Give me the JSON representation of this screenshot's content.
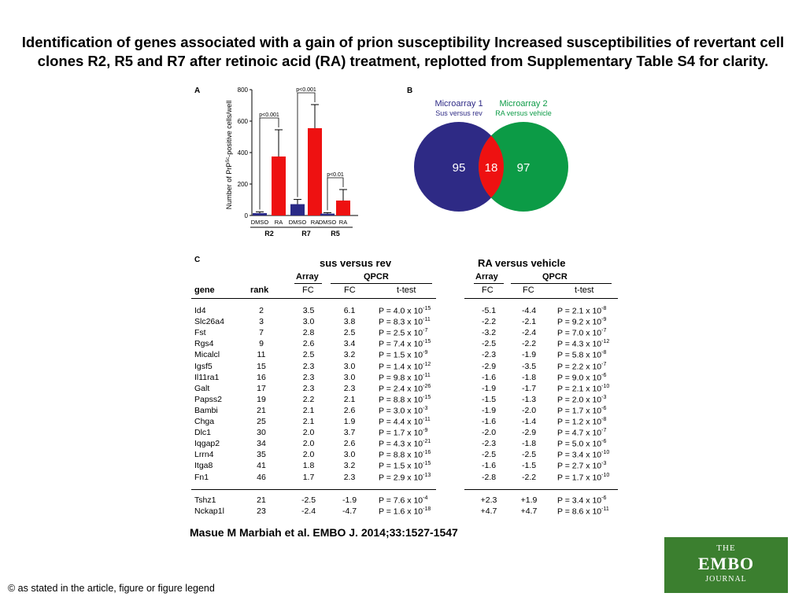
{
  "title": "Identification of genes associated with a gain of prion susceptibility Increased susceptibilities of revertant cell clones R2, R5 and R7 after retinoic acid (RA) treatment, replotted from Supplementary Table S4 for clarity.",
  "citation": "Masue M Marbiah et al. EMBO J. 2014;33:1527-1547",
  "copyright": "© as stated in the article, figure or figure legend",
  "logo": {
    "line1": "THE",
    "line2": "EMBO",
    "line3": "JOURNAL",
    "bg": "#3b7f2f"
  },
  "panels": {
    "a": "A",
    "b": "B",
    "c": "C"
  },
  "colors": {
    "dmso": "#2a2a86",
    "ra": "#ee1111",
    "set1": "#2e2a85",
    "set2": "#0c9b46",
    "overlap": "#ee1111"
  },
  "chart_data": {
    "type": "bar",
    "ylabel_main": "Number of PrP",
    "ylabel_sup": "Sc",
    "ylabel_rest": "-positive cells/well",
    "ylim": [
      0,
      800
    ],
    "yticks": [
      "0",
      "200",
      "400",
      "600",
      "800"
    ],
    "categories": [
      "DMSO",
      "RA",
      "DMSO",
      "RA",
      "DMSO",
      "RA"
    ],
    "groups": [
      "R2",
      "R7",
      "R5"
    ],
    "values": [
      15,
      375,
      72,
      555,
      12,
      95
    ],
    "errors": [
      8,
      170,
      30,
      150,
      6,
      70
    ],
    "pvalues": [
      "p<0.001",
      "p<0.001",
      "p<0.01"
    ]
  },
  "venn": {
    "set1_title": "Microarray 1",
    "set1_sub": "Sus versus rev",
    "set2_title": "Microarray 2",
    "set2_sub": "RA versus vehicle",
    "left_only": "95",
    "overlap": "18",
    "right_only": "97"
  },
  "table": {
    "group1_title": "sus versus rev",
    "group2_title": "RA versus vehicle",
    "array": "Array",
    "qpcr": "QPCR",
    "col_gene": "gene",
    "col_rank": "rank",
    "col_fc": "FC",
    "col_ttest": "t-test",
    "rows": [
      {
        "gene": "Id4",
        "rank": "2",
        "fc1": "3.5",
        "q1": "6.1",
        "p1": "P = 4.0 x 10",
        "e1": "-15",
        "fc2": "-5.1",
        "q2": "-4.4",
        "p2": "P = 2.1 x 10",
        "e2": "-8"
      },
      {
        "gene": "Slc26a4",
        "rank": "3",
        "fc1": "3.0",
        "q1": "3.8",
        "p1": "P = 8.3 x 10",
        "e1": "-11",
        "fc2": "-2.2",
        "q2": "-2.1",
        "p2": "P = 9.2 x 10",
        "e2": "-9"
      },
      {
        "gene": "Fst",
        "rank": "7",
        "fc1": "2.8",
        "q1": "2.5",
        "p1": "P = 2.5 x 10",
        "e1": "-7",
        "fc2": "-3.2",
        "q2": "-2.4",
        "p2": "P = 7.0 x 10",
        "e2": "-7"
      },
      {
        "gene": "Rgs4",
        "rank": "9",
        "fc1": "2.6",
        "q1": "3.4",
        "p1": "P = 7.4 x 10",
        "e1": "-15",
        "fc2": "-2.5",
        "q2": "-2.2",
        "p2": "P = 4.3 x 10",
        "e2": "-12"
      },
      {
        "gene": "Micalcl",
        "rank": "11",
        "fc1": "2.5",
        "q1": "3.2",
        "p1": "P = 1.5 x 10",
        "e1": "-9",
        "fc2": "-2.3",
        "q2": "-1.9",
        "p2": "P = 5.8 x 10",
        "e2": "-8"
      },
      {
        "gene": "Igsf5",
        "rank": "15",
        "fc1": "2.3",
        "q1": "3.0",
        "p1": "P = 1.4 x 10",
        "e1": "-12",
        "fc2": "-2.9",
        "q2": "-3.5",
        "p2": "P = 2.2 x 10",
        "e2": "-7"
      },
      {
        "gene": "Il11ra1",
        "rank": "16",
        "fc1": "2.3",
        "q1": "3.0",
        "p1": "P = 9.8 x 10",
        "e1": "-11",
        "fc2": "-1.6",
        "q2": "-1.8",
        "p2": "P = 9.0 x 10",
        "e2": "-6"
      },
      {
        "gene": "Galt",
        "rank": "17",
        "fc1": "2.3",
        "q1": "2.3",
        "p1": "P = 2.4 x 10",
        "e1": "-26",
        "fc2": "-1.9",
        "q2": "-1.7",
        "p2": "P = 2.1 x 10",
        "e2": "-10"
      },
      {
        "gene": "Papss2",
        "rank": "19",
        "fc1": "2.2",
        "q1": "2.1",
        "p1": "P = 8.8 x 10",
        "e1": "-15",
        "fc2": "-1.5",
        "q2": "-1.3",
        "p2": "P = 2.0 x 10",
        "e2": "-3"
      },
      {
        "gene": "Bambi",
        "rank": "21",
        "fc1": "2.1",
        "q1": "2.6",
        "p1": "P = 3.0 x 10",
        "e1": "-3",
        "fc2": "-1.9",
        "q2": "-2.0",
        "p2": "P = 1.7 x 10",
        "e2": "-6"
      },
      {
        "gene": "Chga",
        "rank": "25",
        "fc1": "2.1",
        "q1": "1.9",
        "p1": "P = 4.4 x 10",
        "e1": "-11",
        "fc2": "-1.6",
        "q2": "-1.4",
        "p2": "P = 1.2 x 10",
        "e2": "-8"
      },
      {
        "gene": "Dlc1",
        "rank": "30",
        "fc1": "2.0",
        "q1": "3.7",
        "p1": "P = 1.7 x 10",
        "e1": "-9",
        "fc2": "-2.0",
        "q2": "-2.9",
        "p2": "P = 4.7 x 10",
        "e2": "-7"
      },
      {
        "gene": "Iqgap2",
        "rank": "34",
        "fc1": "2.0",
        "q1": "2.6",
        "p1": "P = 4.3 x 10",
        "e1": "-21",
        "fc2": "-2.3",
        "q2": "-1.8",
        "p2": "P = 5.0 x 10",
        "e2": "-6"
      },
      {
        "gene": "Lrrn4",
        "rank": "35",
        "fc1": "2.0",
        "q1": "3.0",
        "p1": "P = 8.8 x 10",
        "e1": "-16",
        "fc2": "-2.5",
        "q2": "-2.5",
        "p2": "P = 3.4 x 10",
        "e2": "-10"
      },
      {
        "gene": "Itga8",
        "rank": "41",
        "fc1": "1.8",
        "q1": "3.2",
        "p1": "P = 1.5 x 10",
        "e1": "-15",
        "fc2": "-1.6",
        "q2": "-1.5",
        "p2": "P = 2.7 x 10",
        "e2": "-3"
      },
      {
        "gene": "Fn1",
        "rank": "46",
        "fc1": "1.7",
        "q1": "2.3",
        "p1": "P = 2.9 x 10",
        "e1": "-13",
        "fc2": "-2.8",
        "q2": "-2.2",
        "p2": "P = 1.7 x 10",
        "e2": "-10"
      }
    ],
    "rows2": [
      {
        "gene": "Tshz1",
        "rank": "21",
        "fc1": "-2.5",
        "q1": "-1.9",
        "p1": "P = 7.6 x 10",
        "e1": "-4",
        "fc2": "+2.3",
        "q2": "+1.9",
        "p2": "P = 3.4 x 10",
        "e2": "-6"
      },
      {
        "gene": "Nckap1l",
        "rank": "23",
        "fc1": "-2.4",
        "q1": "-4.7",
        "p1": "P = 1.6 x 10",
        "e1": "-18",
        "fc2": "+4.7",
        "q2": "+4.7",
        "p2": "P = 8.6 x 10",
        "e2": "-11"
      }
    ]
  }
}
